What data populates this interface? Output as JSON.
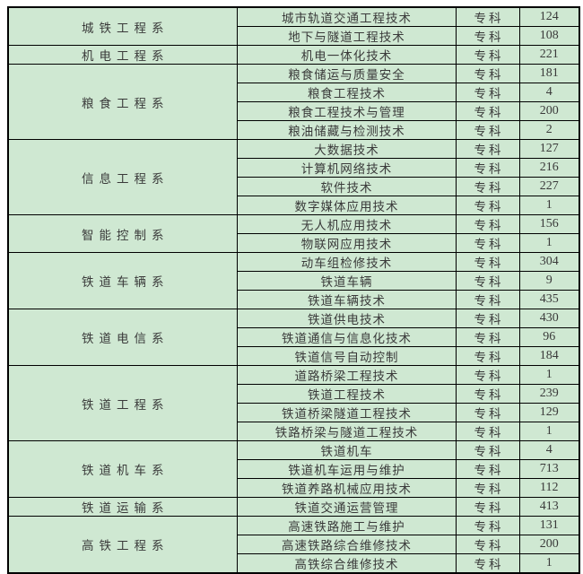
{
  "colors": {
    "page_bg": "#ffffff",
    "cell_bg": "#cfe8d2",
    "border": "#000000",
    "text": "#3a3a3a"
  },
  "table": {
    "groups": [
      {
        "department": "城铁工程系",
        "programs": [
          {
            "name": "城市轨道交通工程技术",
            "level": "专科",
            "count": 124
          },
          {
            "name": "地下与隧道工程技术",
            "level": "专科",
            "count": 108
          }
        ]
      },
      {
        "department": "机电工程系",
        "programs": [
          {
            "name": "机电一体化技术",
            "level": "专科",
            "count": 221
          }
        ]
      },
      {
        "department": "粮食工程系",
        "programs": [
          {
            "name": "粮食储运与质量安全",
            "level": "专科",
            "count": 181
          },
          {
            "name": "粮食工程技术",
            "level": "专科",
            "count": 4
          },
          {
            "name": "粮食工程技术与管理",
            "level": "专科",
            "count": 200
          },
          {
            "name": "粮油储藏与检测技术",
            "level": "专科",
            "count": 2
          }
        ]
      },
      {
        "department": "信息工程系",
        "programs": [
          {
            "name": "大数据技术",
            "level": "专科",
            "count": 127
          },
          {
            "name": "计算机网络技术",
            "level": "专科",
            "count": 216
          },
          {
            "name": "软件技术",
            "level": "专科",
            "count": 227
          },
          {
            "name": "数字媒体应用技术",
            "level": "专科",
            "count": 1
          }
        ]
      },
      {
        "department": "智能控制系",
        "programs": [
          {
            "name": "无人机应用技术",
            "level": "专科",
            "count": 156
          },
          {
            "name": "物联网应用技术",
            "level": "专科",
            "count": 1
          }
        ]
      },
      {
        "department": "铁道车辆系",
        "programs": [
          {
            "name": "动车组检修技术",
            "level": "专科",
            "count": 304
          },
          {
            "name": "铁道车辆",
            "level": "专科",
            "count": 9
          },
          {
            "name": "铁道车辆技术",
            "level": "专科",
            "count": 435
          }
        ]
      },
      {
        "department": "铁道电信系",
        "programs": [
          {
            "name": "铁道供电技术",
            "level": "专科",
            "count": 430
          },
          {
            "name": "铁道通信与信息化技术",
            "level": "专科",
            "count": 96
          },
          {
            "name": "铁道信号自动控制",
            "level": "专科",
            "count": 184
          }
        ]
      },
      {
        "department": "铁道工程系",
        "programs": [
          {
            "name": "道路桥梁工程技术",
            "level": "专科",
            "count": 1
          },
          {
            "name": "铁道工程技术",
            "level": "专科",
            "count": 239
          },
          {
            "name": "铁道桥梁隧道工程技术",
            "level": "专科",
            "count": 129
          },
          {
            "name": "铁路桥梁与隧道工程技术",
            "level": "专科",
            "count": 1
          }
        ]
      },
      {
        "department": "铁道机车系",
        "programs": [
          {
            "name": "铁道机车",
            "level": "专科",
            "count": 4
          },
          {
            "name": "铁道机车运用与维护",
            "level": "专科",
            "count": 713
          },
          {
            "name": "铁道养路机械应用技术",
            "level": "专科",
            "count": 112
          }
        ]
      },
      {
        "department": "铁道运输系",
        "programs": [
          {
            "name": "铁道交通运营管理",
            "level": "专科",
            "count": 413
          }
        ]
      },
      {
        "department": "高铁工程系",
        "programs": [
          {
            "name": "高速铁路施工与维护",
            "level": "专科",
            "count": 131
          },
          {
            "name": "高速铁路综合维修技术",
            "level": "专科",
            "count": 200
          },
          {
            "name": "高铁综合维修技术",
            "level": "专科",
            "count": 1
          }
        ]
      }
    ]
  }
}
